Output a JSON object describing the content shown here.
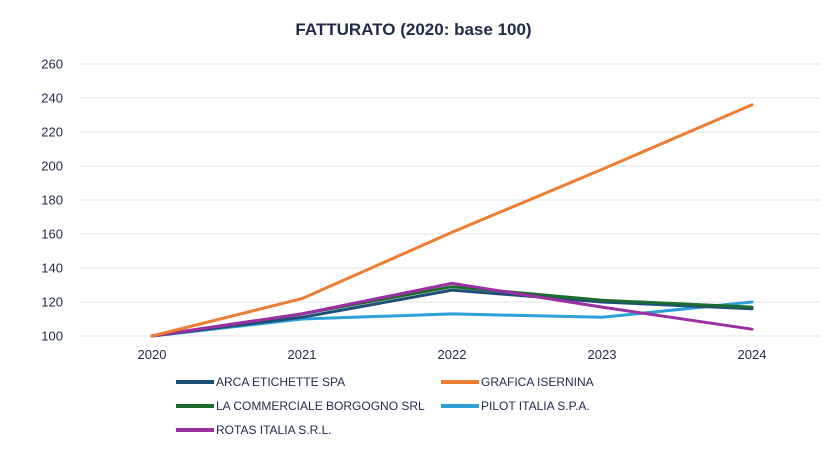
{
  "chart_data": {
    "type": "line",
    "title": "FATTURATO (2020: base 100)",
    "xlabel": "",
    "ylabel": "",
    "categories": [
      "2020",
      "2021",
      "2022",
      "2023",
      "2024"
    ],
    "yticks": [
      100,
      120,
      140,
      160,
      180,
      200,
      220,
      240,
      260
    ],
    "ylim": [
      100,
      260
    ],
    "grid": true,
    "legend_position": "bottom",
    "series": [
      {
        "name": "ARCA ETICHETTE SPA",
        "color": "#1f4e79",
        "values": [
          100,
          111,
          127,
          120,
          116
        ]
      },
      {
        "name": "GRAFICA ISERNINA",
        "color": "#ed7d31",
        "values": [
          100,
          122,
          161,
          198,
          236
        ]
      },
      {
        "name": "LA COMMERCIALE BORGOGNO SRL",
        "color": "#1e6b2e",
        "values": [
          100,
          113,
          129,
          121,
          117
        ]
      },
      {
        "name": "PILOT ITALIA S.P.A.",
        "color": "#2e9fd8",
        "values": [
          100,
          110,
          113,
          111,
          120
        ]
      },
      {
        "name": "ROTAS ITALIA S.R.L.",
        "color": "#9b2fa3",
        "values": [
          100,
          113,
          131,
          117,
          104
        ]
      }
    ]
  }
}
